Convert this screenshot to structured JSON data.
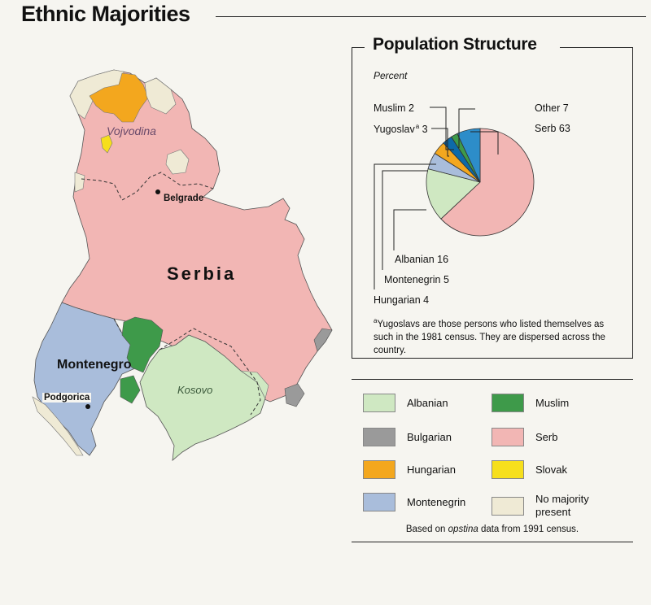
{
  "title": "Ethnic Majorities",
  "colors": {
    "albanian": "#cfe8c2",
    "bulgarian": "#9a9a9a",
    "hungarian": "#f3a71e",
    "montenegrin": "#a9bddb",
    "muslim": "#3e9a4a",
    "serb": "#f2b6b4",
    "slovak": "#f6df1c",
    "no_majority": "#efead5",
    "yugoslav": "#0d6aa8",
    "other": "#2d8dc9"
  },
  "map": {
    "labels": {
      "vojvodina": "Vojvodina",
      "belgrade": "Belgrade",
      "serbia": "Serbia",
      "montenegro": "Montenegro",
      "podgorica": "Podgorica",
      "kosovo": "Kosovo"
    }
  },
  "population_structure": {
    "title": "Population Structure",
    "subtitle": "Percent",
    "labels": {
      "muslim": "Muslim  2",
      "yugoslav_name": "Yugoslav",
      "yugoslav_mark": "a",
      "yugoslav_value": " 3",
      "other": "Other  7",
      "serb": "Serb  63",
      "albanian": "Albanian  16",
      "montenegrin": "Montenegrin  5",
      "hungarian": "Hungarian  4"
    },
    "footnote_mark": "a",
    "footnote": "Yugoslavs are those persons who listed themselves as such in the 1981 census.  They are dispersed across the country."
  },
  "chart_data": {
    "type": "pie",
    "title": "Population Structure",
    "subtitle": "Percent",
    "slices": [
      {
        "label": "Serb",
        "value": 63
      },
      {
        "label": "Albanian",
        "value": 16
      },
      {
        "label": "Montenegrin",
        "value": 5
      },
      {
        "label": "Hungarian",
        "value": 4
      },
      {
        "label": "Yugoslav",
        "value": 3
      },
      {
        "label": "Muslim",
        "value": 2
      },
      {
        "label": "Other",
        "value": 7
      }
    ]
  },
  "legend": {
    "items": [
      {
        "key": "albanian",
        "label": "Albanian"
      },
      {
        "key": "muslim",
        "label": "Muslim"
      },
      {
        "key": "bulgarian",
        "label": "Bulgarian"
      },
      {
        "key": "serb",
        "label": "Serb"
      },
      {
        "key": "hungarian",
        "label": "Hungarian"
      },
      {
        "key": "slovak",
        "label": "Slovak"
      },
      {
        "key": "montenegrin",
        "label": "Montenegrin"
      },
      {
        "key": "no_majority",
        "label": "No majority present"
      }
    ],
    "note_prefix": "Based on ",
    "note_em": "opstina",
    "note_suffix": " data from 1991 census."
  }
}
